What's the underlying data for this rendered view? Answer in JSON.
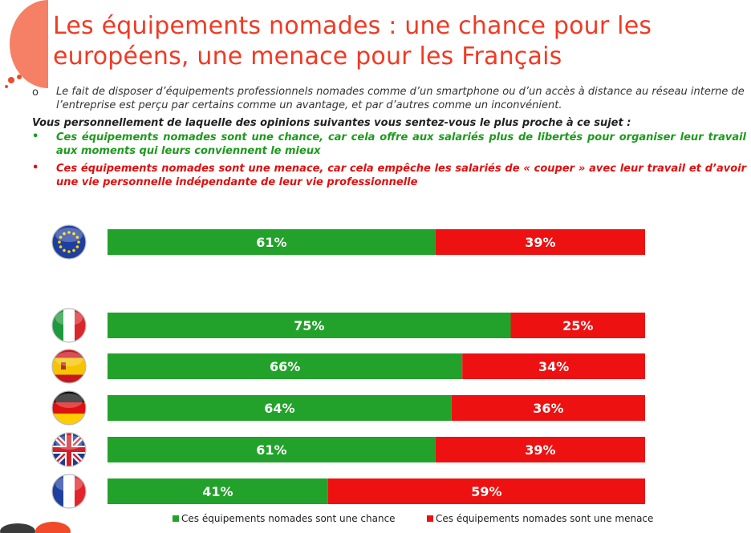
{
  "header": {
    "title": "Les équipements nomades : une chance pour les européens, une menace pour les Français"
  },
  "text": {
    "intro": "Le fait de disposer d’équipements professionnels nomades comme d’un smartphone ou d’un accès à distance au réseau interne de l’entreprise est perçu par certains comme un avantage, et par d’autres comme un inconvénient.",
    "question": "Vous personnellement de laquelle des opinions suivantes vous sentez-vous le plus proche à ce sujet :",
    "option_chance": "Ces équipements nomades sont une chance, car cela offre aux salariés plus de libertés pour organiser leur travail aux moments qui leurs conviennent le mieux",
    "option_menace": "Ces équipements nomades sont une menace, car cela empêche les salariés de « couper » avec leur travail et d’avoir une vie personnelle indépendante de leur vie professionnelle",
    "bullet_circle": "o",
    "bullet_dot": "•"
  },
  "colors": {
    "chance": "#22a22a",
    "menace": "#ee1111",
    "title": "#f03a24"
  },
  "chart_data": {
    "type": "bar",
    "orientation": "horizontal",
    "stacked": true,
    "categories_icons": [
      "eu-flag-icon",
      "italy-flag-icon",
      "spain-flag-icon",
      "germany-flag-icon",
      "uk-flag-icon",
      "france-flag-icon"
    ],
    "series": [
      {
        "name": "Ces équipements nomades sont une chance",
        "values": [
          61,
          75,
          66,
          64,
          61,
          41
        ],
        "labels": [
          "61%",
          "75%",
          "66%",
          "64%",
          "61%",
          "41%"
        ]
      },
      {
        "name": "Ces équipements nomades sont une menace",
        "values": [
          39,
          25,
          34,
          36,
          39,
          59
        ],
        "labels": [
          "39%",
          "25%",
          "34%",
          "36%",
          "39%",
          "59%"
        ]
      }
    ],
    "xlim": [
      0,
      100
    ],
    "legend_position": "bottom"
  }
}
